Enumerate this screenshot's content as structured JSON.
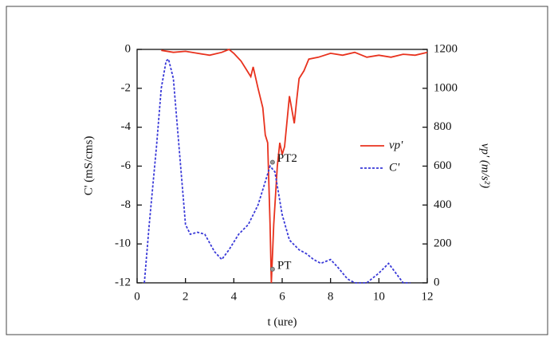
{
  "chart_data": {
    "type": "line",
    "x_label": "t (ure)",
    "y_label": "C' (mS/cms)",
    "y2_label": "vp' (m/s²)",
    "xlim": [
      0,
      12
    ],
    "xticks": [
      0,
      2,
      4,
      6,
      8,
      10,
      12
    ],
    "ylim": [
      -12,
      0
    ],
    "yticks": [
      -12,
      -10,
      -8,
      -6,
      -4,
      -2,
      0
    ],
    "y2lim": [
      0,
      1200
    ],
    "y2ticks": [
      0,
      200,
      400,
      600,
      800,
      1000,
      1200
    ],
    "series": [
      {
        "name": "vp'",
        "color": "#e8321e",
        "dash": false,
        "axis": "y2",
        "x": [
          1.0,
          1.5,
          2.0,
          2.5,
          3.0,
          3.5,
          3.8,
          4.0,
          4.3,
          4.5,
          4.7,
          4.8,
          5.0,
          5.2,
          5.3,
          5.4,
          5.5,
          5.55,
          5.65,
          5.8,
          5.9,
          6.0,
          6.1,
          6.3,
          6.5,
          6.6,
          6.7,
          6.9,
          7.1,
          7.5,
          8.0,
          8.5,
          9.0,
          9.5,
          10.0,
          10.5,
          11.0,
          11.5,
          12.0
        ],
        "values": [
          1195,
          1185,
          1190,
          1180,
          1170,
          1185,
          1200,
          1180,
          1140,
          1100,
          1060,
          1110,
          1000,
          900,
          760,
          720,
          300,
          0,
          300,
          600,
          720,
          660,
          700,
          960,
          820,
          940,
          1050,
          1090,
          1150,
          1160,
          1180,
          1170,
          1185,
          1160,
          1170,
          1160,
          1175,
          1170,
          1185
        ]
      },
      {
        "name": "C'",
        "color": "#3a3ad8",
        "dash": true,
        "axis": "y",
        "x": [
          0.3,
          0.5,
          0.8,
          1.0,
          1.2,
          1.3,
          1.5,
          1.8,
          2.0,
          2.2,
          2.5,
          2.8,
          3.2,
          3.5,
          3.8,
          4.2,
          4.6,
          5.0,
          5.3,
          5.5,
          5.7,
          6.0,
          6.3,
          6.7,
          7.0,
          7.3,
          7.6,
          8.0,
          8.3,
          8.7,
          9.0,
          9.5,
          10.0,
          10.4,
          10.7,
          11.0,
          11.3
        ],
        "values": [
          -12,
          -9,
          -5,
          -2,
          -0.6,
          -0.5,
          -1.5,
          -6,
          -9,
          -9.5,
          -9.4,
          -9.5,
          -10.4,
          -10.8,
          -10.3,
          -9.5,
          -9,
          -8,
          -6.8,
          -6,
          -6.3,
          -8.5,
          -9.8,
          -10.3,
          -10.5,
          -10.8,
          -11,
          -10.8,
          -11.2,
          -11.8,
          -12,
          -12,
          -11.5,
          -11,
          -11.5,
          -12,
          -12
        ]
      }
    ],
    "annotations": [
      {
        "text": "PT2",
        "x": 5.6,
        "y": -5.8
      },
      {
        "text": "PT",
        "x": 5.6,
        "y": -11.3
      }
    ],
    "legend": "right"
  }
}
